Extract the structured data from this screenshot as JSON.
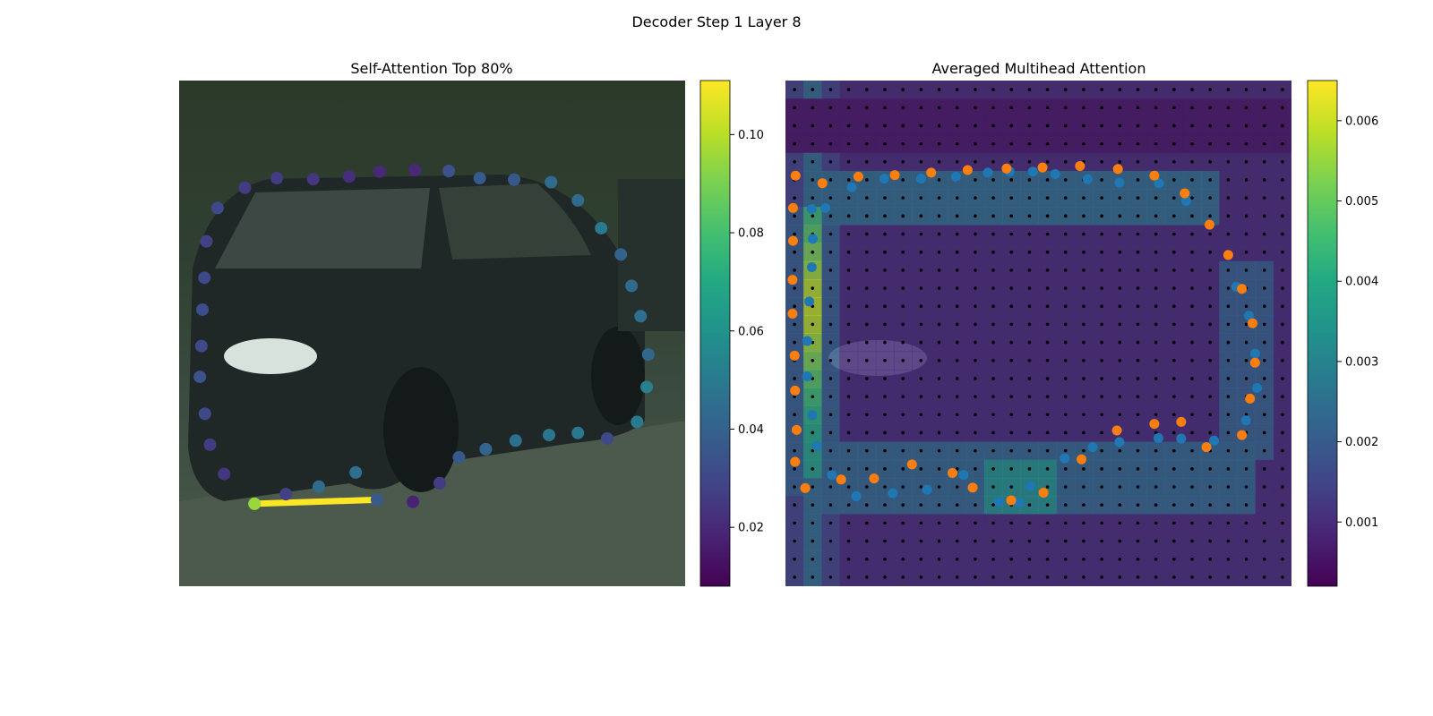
{
  "figure": {
    "suptitle": "Decoder Step 1 Layer 8"
  },
  "chart_data": [
    {
      "type": "scatter",
      "title": "Self-Attention Top 80%",
      "description_shown": "Polygon vertices over car image colored by self-attention weight; a yellow segment links the queried vertex to its top attended vertex",
      "colorbar": {
        "min": 0.008,
        "max": 0.111,
        "ticks": [
          0.02,
          0.04,
          0.06,
          0.08,
          0.1
        ],
        "tick_labels": [
          "0.02",
          "0.04",
          "0.06",
          "0.08",
          "0.10"
        ]
      },
      "x_range": [
        0,
        1
      ],
      "y_range": [
        0,
        1
      ],
      "points": [
        {
          "x": 0.149,
          "y": 0.837,
          "w": 0.095
        },
        {
          "x": 0.211,
          "y": 0.818,
          "w": 0.028
        },
        {
          "x": 0.276,
          "y": 0.803,
          "w": 0.044
        },
        {
          "x": 0.349,
          "y": 0.775,
          "w": 0.045
        },
        {
          "x": 0.391,
          "y": 0.829,
          "w": 0.037
        },
        {
          "x": 0.462,
          "y": 0.833,
          "w": 0.018
        },
        {
          "x": 0.515,
          "y": 0.796,
          "w": 0.026
        },
        {
          "x": 0.553,
          "y": 0.745,
          "w": 0.036
        },
        {
          "x": 0.606,
          "y": 0.729,
          "w": 0.041
        },
        {
          "x": 0.665,
          "y": 0.712,
          "w": 0.046
        },
        {
          "x": 0.731,
          "y": 0.701,
          "w": 0.048
        },
        {
          "x": 0.788,
          "y": 0.697,
          "w": 0.049
        },
        {
          "x": 0.846,
          "y": 0.708,
          "w": 0.03
        },
        {
          "x": 0.905,
          "y": 0.675,
          "w": 0.05
        },
        {
          "x": 0.924,
          "y": 0.606,
          "w": 0.052
        },
        {
          "x": 0.927,
          "y": 0.542,
          "w": 0.042
        },
        {
          "x": 0.912,
          "y": 0.466,
          "w": 0.045
        },
        {
          "x": 0.894,
          "y": 0.406,
          "w": 0.044
        },
        {
          "x": 0.873,
          "y": 0.344,
          "w": 0.04
        },
        {
          "x": 0.834,
          "y": 0.292,
          "w": 0.05
        },
        {
          "x": 0.788,
          "y": 0.237,
          "w": 0.044
        },
        {
          "x": 0.735,
          "y": 0.201,
          "w": 0.044
        },
        {
          "x": 0.662,
          "y": 0.196,
          "w": 0.036
        },
        {
          "x": 0.594,
          "y": 0.193,
          "w": 0.037
        },
        {
          "x": 0.533,
          "y": 0.179,
          "w": 0.034
        },
        {
          "x": 0.466,
          "y": 0.177,
          "w": 0.02
        },
        {
          "x": 0.396,
          "y": 0.18,
          "w": 0.02
        },
        {
          "x": 0.336,
          "y": 0.19,
          "w": 0.022
        },
        {
          "x": 0.265,
          "y": 0.195,
          "w": 0.024
        },
        {
          "x": 0.193,
          "y": 0.193,
          "w": 0.026
        },
        {
          "x": 0.13,
          "y": 0.212,
          "w": 0.026
        },
        {
          "x": 0.076,
          "y": 0.252,
          "w": 0.03
        },
        {
          "x": 0.054,
          "y": 0.318,
          "w": 0.028
        },
        {
          "x": 0.05,
          "y": 0.39,
          "w": 0.03
        },
        {
          "x": 0.046,
          "y": 0.453,
          "w": 0.032
        },
        {
          "x": 0.044,
          "y": 0.525,
          "w": 0.03
        },
        {
          "x": 0.041,
          "y": 0.586,
          "w": 0.034
        },
        {
          "x": 0.051,
          "y": 0.659,
          "w": 0.03
        },
        {
          "x": 0.061,
          "y": 0.72,
          "w": 0.026
        },
        {
          "x": 0.089,
          "y": 0.778,
          "w": 0.024
        }
      ],
      "highlight_segment": {
        "from_index": 0,
        "to_index": 4,
        "color": "#fde725"
      }
    },
    {
      "type": "heatmap",
      "title": "Averaged Multihead Attention",
      "colorbar": {
        "min": 0.0002,
        "max": 0.0065,
        "ticks": [
          0.001,
          0.002,
          0.003,
          0.004,
          0.005,
          0.006
        ],
        "tick_labels": [
          "0.001",
          "0.002",
          "0.003",
          "0.004",
          "0.005",
          "0.006"
        ]
      },
      "grid": {
        "cols": 28,
        "rows": 28
      },
      "series": [
        {
          "color": "#1f77b4",
          "points": [
            [
              0.131,
              0.211
            ],
            [
              0.195,
              0.194
            ],
            [
              0.268,
              0.194
            ],
            [
              0.337,
              0.19
            ],
            [
              0.4,
              0.182
            ],
            [
              0.443,
              0.18
            ],
            [
              0.489,
              0.18
            ],
            [
              0.533,
              0.185
            ],
            [
              0.597,
              0.195
            ],
            [
              0.66,
              0.202
            ],
            [
              0.738,
              0.203
            ],
            [
              0.792,
              0.238
            ],
            [
              0.891,
              0.408
            ],
            [
              0.916,
              0.465
            ],
            [
              0.928,
              0.54
            ],
            [
              0.932,
              0.608
            ],
            [
              0.91,
              0.672
            ],
            [
              0.847,
              0.712
            ],
            [
              0.782,
              0.708
            ],
            [
              0.737,
              0.707
            ],
            [
              0.66,
              0.715
            ],
            [
              0.607,
              0.725
            ],
            [
              0.552,
              0.747
            ],
            [
              0.484,
              0.802
            ],
            [
              0.462,
              0.835
            ],
            [
              0.422,
              0.833
            ],
            [
              0.352,
              0.78
            ],
            [
              0.28,
              0.809
            ],
            [
              0.212,
              0.816
            ],
            [
              0.14,
              0.822
            ],
            [
              0.092,
              0.78
            ],
            [
              0.062,
              0.723
            ],
            [
              0.053,
              0.662
            ],
            [
              0.043,
              0.585
            ],
            [
              0.043,
              0.515
            ],
            [
              0.047,
              0.437
            ],
            [
              0.052,
              0.369
            ],
            [
              0.054,
              0.313
            ],
            [
              0.052,
              0.254
            ],
            [
              0.079,
              0.252
            ]
          ]
        },
        {
          "color": "#ff7f0e",
          "points": [
            [
              0.073,
              0.203
            ],
            [
              0.144,
              0.19
            ],
            [
              0.216,
              0.187
            ],
            [
              0.288,
              0.182
            ],
            [
              0.36,
              0.177
            ],
            [
              0.437,
              0.174
            ],
            [
              0.508,
              0.172
            ],
            [
              0.582,
              0.169
            ],
            [
              0.657,
              0.175
            ],
            [
              0.729,
              0.188
            ],
            [
              0.789,
              0.223
            ],
            [
              0.838,
              0.285
            ],
            [
              0.875,
              0.345
            ],
            [
              0.902,
              0.412
            ],
            [
              0.923,
              0.48
            ],
            [
              0.928,
              0.558
            ],
            [
              0.918,
              0.629
            ],
            [
              0.902,
              0.701
            ],
            [
              0.832,
              0.725
            ],
            [
              0.782,
              0.675
            ],
            [
              0.729,
              0.679
            ],
            [
              0.655,
              0.692
            ],
            [
              0.585,
              0.749
            ],
            [
              0.51,
              0.815
            ],
            [
              0.446,
              0.83
            ],
            [
              0.37,
              0.805
            ],
            [
              0.33,
              0.776
            ],
            [
              0.25,
              0.759
            ],
            [
              0.175,
              0.787
            ],
            [
              0.11,
              0.789
            ],
            [
              0.039,
              0.806
            ],
            [
              0.019,
              0.754
            ],
            [
              0.022,
              0.691
            ],
            [
              0.019,
              0.613
            ],
            [
              0.018,
              0.544
            ],
            [
              0.014,
              0.461
            ],
            [
              0.014,
              0.394
            ],
            [
              0.015,
              0.317
            ],
            [
              0.015,
              0.252
            ],
            [
              0.02,
              0.188
            ]
          ]
        }
      ]
    }
  ]
}
